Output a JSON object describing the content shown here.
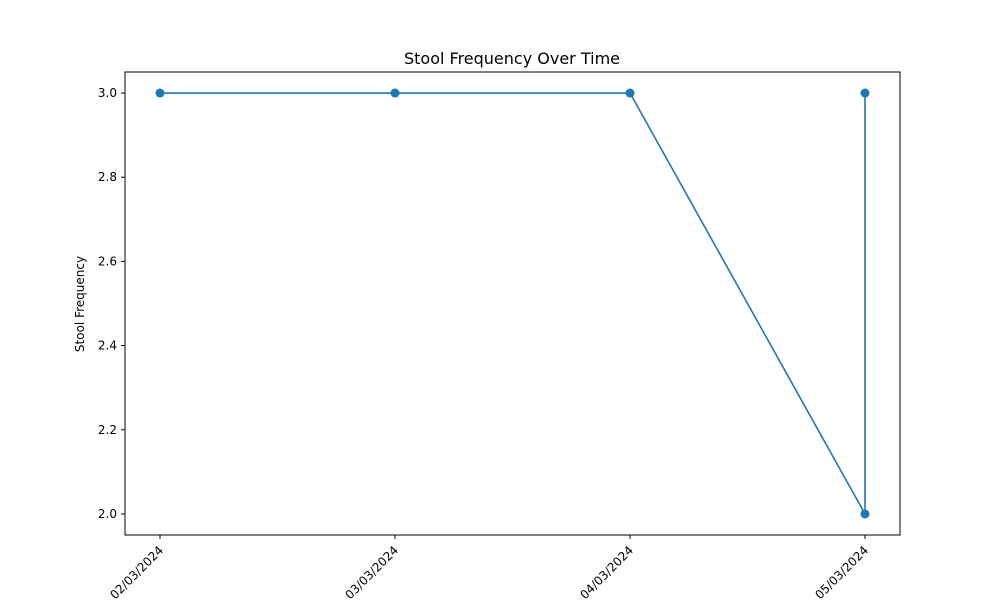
{
  "chart_data": {
    "type": "line",
    "title": "Stool Frequency Over Time",
    "xlabel": "",
    "ylabel": "Stool Frequency",
    "categories": [
      "02/03/2024",
      "03/03/2024",
      "04/03/2024",
      "05/03/2024"
    ],
    "points": [
      {
        "x": "02/03/2024",
        "y": 3.0
      },
      {
        "x": "03/03/2024",
        "y": 3.0
      },
      {
        "x": "04/03/2024",
        "y": 3.0
      },
      {
        "x": "05/03/2024",
        "y": 2.0
      },
      {
        "x": "05/03/2024",
        "y": 3.0
      }
    ],
    "ylim": [
      1.95,
      3.05
    ],
    "yticks": [
      2.0,
      2.2,
      2.4,
      2.6,
      2.8,
      3.0
    ],
    "ytick_labels": [
      "2.0",
      "2.2",
      "2.4",
      "2.6",
      "2.8",
      "3.0"
    ],
    "series_color": "#1f77b4",
    "marker": "circle",
    "grid": false,
    "legend": false
  }
}
